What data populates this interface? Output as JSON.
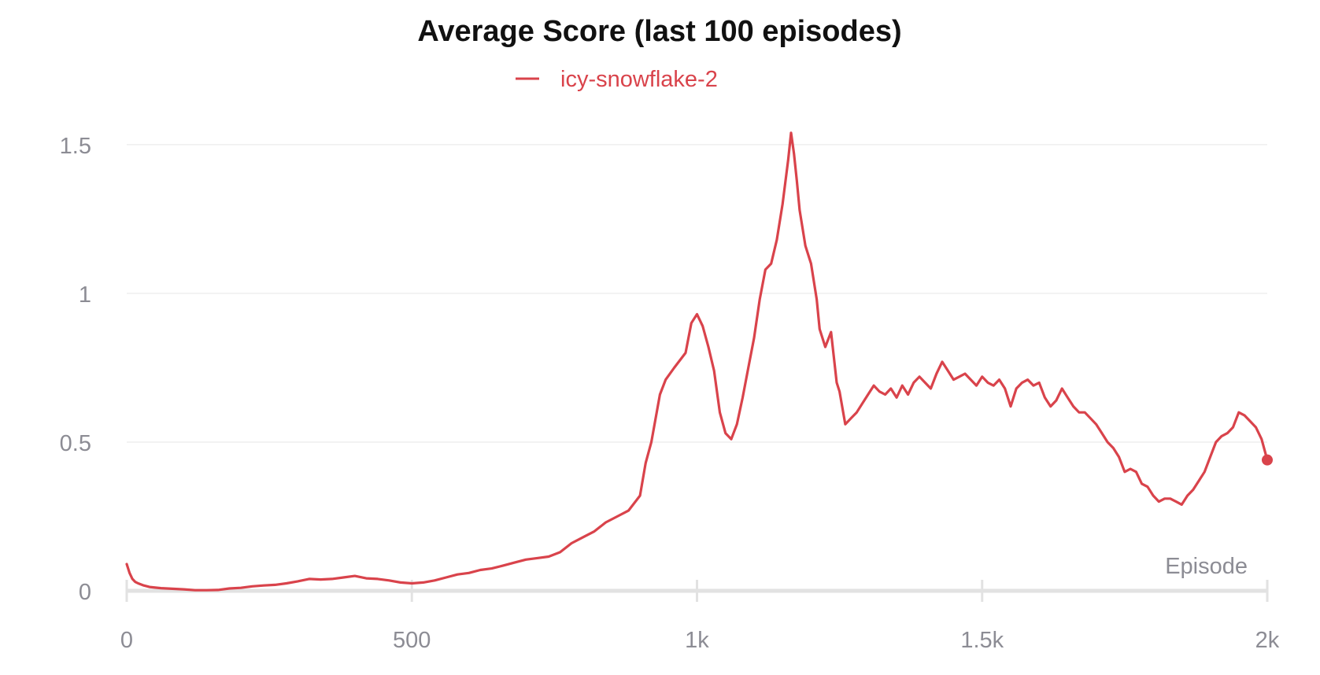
{
  "chart_data": {
    "type": "line",
    "title": "Average Score (last 100 episodes)",
    "xlabel": "Episode",
    "ylabel": "",
    "xlim": [
      0,
      2000
    ],
    "ylim": [
      0,
      1.55
    ],
    "grid": true,
    "legend_position": "top-center",
    "x_ticks": [
      {
        "value": 0,
        "label": "0"
      },
      {
        "value": 500,
        "label": "500"
      },
      {
        "value": 1000,
        "label": "1k"
      },
      {
        "value": 1500,
        "label": "1.5k"
      },
      {
        "value": 2000,
        "label": "2k"
      }
    ],
    "y_ticks": [
      {
        "value": 0,
        "label": "0"
      },
      {
        "value": 0.5,
        "label": "0.5"
      },
      {
        "value": 1,
        "label": "1"
      },
      {
        "value": 1.5,
        "label": "1.5"
      }
    ],
    "series": [
      {
        "name": "icy-snowflake-2",
        "color": "#d9434b",
        "x": [
          0,
          5,
          10,
          15,
          20,
          30,
          40,
          60,
          80,
          100,
          120,
          140,
          160,
          180,
          200,
          220,
          240,
          260,
          280,
          300,
          320,
          340,
          360,
          380,
          400,
          420,
          440,
          460,
          480,
          500,
          520,
          540,
          560,
          580,
          600,
          620,
          640,
          660,
          680,
          700,
          720,
          740,
          760,
          780,
          800,
          820,
          840,
          860,
          880,
          900,
          910,
          920,
          935,
          945,
          960,
          980,
          990,
          1000,
          1010,
          1020,
          1030,
          1040,
          1050,
          1060,
          1070,
          1080,
          1090,
          1100,
          1110,
          1120,
          1130,
          1140,
          1150,
          1160,
          1165,
          1170,
          1175,
          1180,
          1190,
          1200,
          1210,
          1215,
          1225,
          1235,
          1245,
          1250,
          1260,
          1270,
          1280,
          1290,
          1300,
          1310,
          1320,
          1330,
          1340,
          1350,
          1360,
          1370,
          1380,
          1390,
          1400,
          1410,
          1420,
          1430,
          1440,
          1450,
          1460,
          1470,
          1480,
          1490,
          1500,
          1510,
          1520,
          1530,
          1540,
          1550,
          1560,
          1570,
          1580,
          1590,
          1600,
          1610,
          1620,
          1630,
          1640,
          1650,
          1660,
          1670,
          1680,
          1690,
          1700,
          1710,
          1720,
          1730,
          1740,
          1750,
          1760,
          1770,
          1780,
          1790,
          1800,
          1810,
          1820,
          1830,
          1840,
          1850,
          1860,
          1870,
          1880,
          1890,
          1900,
          1910,
          1920,
          1930,
          1940,
          1950,
          1960,
          1970,
          1980,
          1990,
          2000
        ],
        "values": [
          0.09,
          0.06,
          0.04,
          0.03,
          0.025,
          0.018,
          0.013,
          0.009,
          0.007,
          0.005,
          0.002,
          0.002,
          0.003,
          0.008,
          0.01,
          0.015,
          0.018,
          0.02,
          0.025,
          0.032,
          0.04,
          0.038,
          0.04,
          0.045,
          0.05,
          0.042,
          0.04,
          0.035,
          0.028,
          0.025,
          0.028,
          0.035,
          0.045,
          0.055,
          0.06,
          0.07,
          0.075,
          0.085,
          0.095,
          0.105,
          0.11,
          0.115,
          0.13,
          0.16,
          0.18,
          0.2,
          0.23,
          0.25,
          0.27,
          0.32,
          0.43,
          0.5,
          0.66,
          0.71,
          0.75,
          0.8,
          0.9,
          0.93,
          0.89,
          0.82,
          0.74,
          0.6,
          0.53,
          0.51,
          0.56,
          0.65,
          0.75,
          0.85,
          0.98,
          1.08,
          1.1,
          1.18,
          1.3,
          1.45,
          1.54,
          1.47,
          1.38,
          1.28,
          1.16,
          1.1,
          0.98,
          0.88,
          0.82,
          0.87,
          0.7,
          0.67,
          0.56,
          0.58,
          0.6,
          0.63,
          0.66,
          0.69,
          0.67,
          0.66,
          0.68,
          0.65,
          0.69,
          0.66,
          0.7,
          0.72,
          0.7,
          0.68,
          0.73,
          0.77,
          0.74,
          0.71,
          0.72,
          0.73,
          0.71,
          0.69,
          0.72,
          0.7,
          0.69,
          0.71,
          0.68,
          0.62,
          0.68,
          0.7,
          0.71,
          0.69,
          0.7,
          0.65,
          0.62,
          0.64,
          0.68,
          0.65,
          0.62,
          0.6,
          0.6,
          0.58,
          0.56,
          0.53,
          0.5,
          0.48,
          0.45,
          0.4,
          0.41,
          0.4,
          0.36,
          0.35,
          0.32,
          0.3,
          0.31,
          0.31,
          0.3,
          0.29,
          0.32,
          0.34,
          0.37,
          0.4,
          0.45,
          0.5,
          0.52,
          0.53,
          0.55,
          0.6,
          0.59,
          0.57,
          0.55,
          0.51,
          0.44
        ]
      }
    ]
  }
}
